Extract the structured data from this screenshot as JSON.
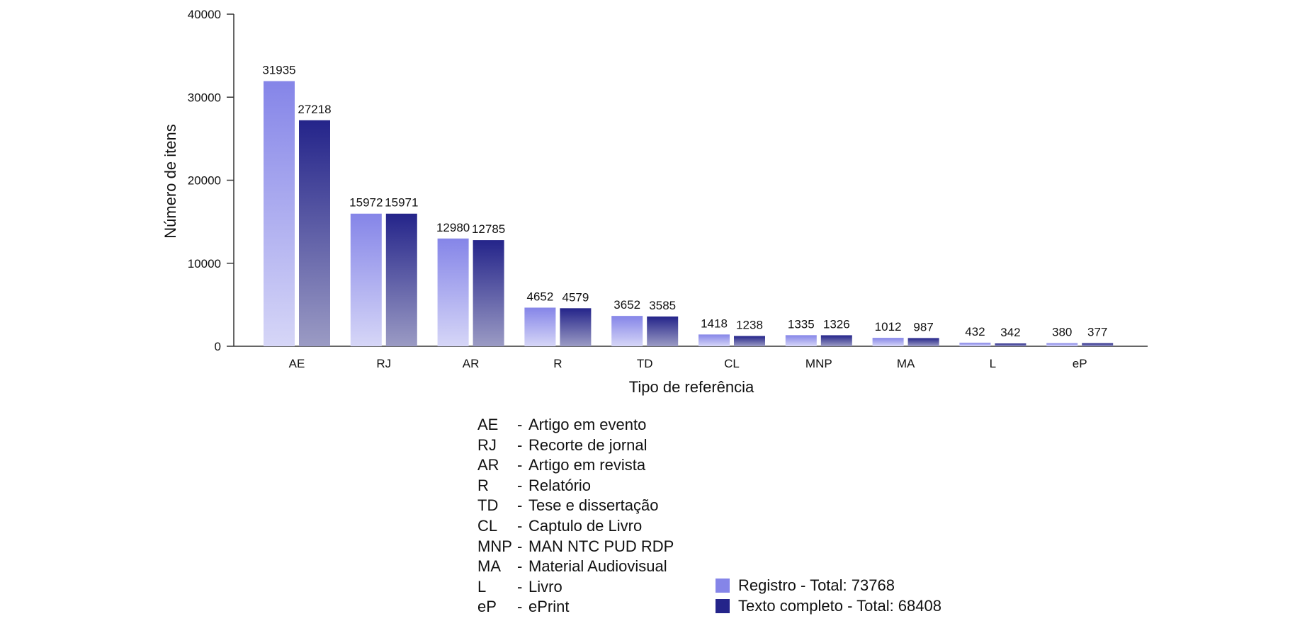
{
  "chart_data": {
    "type": "bar",
    "title": "",
    "xlabel": "Tipo de referência",
    "ylabel": "Número de itens",
    "ylim": [
      0,
      40000
    ],
    "yticks": [
      0,
      10000,
      20000,
      30000,
      40000
    ],
    "categories": [
      "AE",
      "RJ",
      "AR",
      "R",
      "TD",
      "CL",
      "MNP",
      "MA",
      "L",
      "eP"
    ],
    "series": [
      {
        "name": "Registro - Total: 73768",
        "color": "#8585e8",
        "values": [
          31935,
          15972,
          12980,
          4652,
          3652,
          1418,
          1335,
          1012,
          432,
          380
        ]
      },
      {
        "name": "Texto completo - Total: 68408",
        "color": "#24248a",
        "values": [
          27218,
          15971,
          12785,
          4579,
          3585,
          1238,
          1326,
          987,
          342,
          377
        ]
      }
    ],
    "grid": false,
    "legend_position": "bottom-right"
  },
  "abbreviations": [
    {
      "code": "AE",
      "sep": "-",
      "label": "Artigo em evento"
    },
    {
      "code": "RJ",
      "sep": "-",
      "label": "Recorte de jornal"
    },
    {
      "code": "AR",
      "sep": "-",
      "label": "Artigo em revista"
    },
    {
      "code": "R",
      "sep": "-",
      "label": "Relatório"
    },
    {
      "code": "TD",
      "sep": "-",
      "label": "Tese e dissertação"
    },
    {
      "code": "CL",
      "sep": "-",
      "label": "Captulo de Livro"
    },
    {
      "code": "MNP",
      "sep": "-",
      "label": "MAN NTC PUD RDP"
    },
    {
      "code": "MA",
      "sep": "-",
      "label": "Material Audiovisual"
    },
    {
      "code": "L",
      "sep": "-",
      "label": "Livro"
    },
    {
      "code": "eP",
      "sep": "-",
      "label": "ePrint"
    }
  ]
}
